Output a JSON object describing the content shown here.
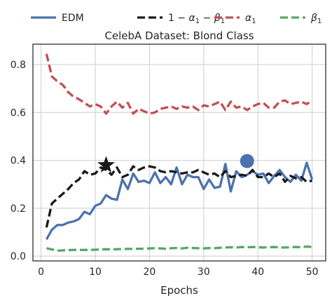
{
  "chart_data": {
    "type": "line",
    "title": "CelebA Dataset: Blond Class",
    "xlabel": "Epochs",
    "ylabel": "",
    "xlim": [
      -1.5,
      52.5
    ],
    "ylim": [
      -0.02,
      0.885
    ],
    "xticks": [
      0,
      10,
      20,
      30,
      40,
      50
    ],
    "xtick_labels": [
      "0",
      "10",
      "20",
      "30",
      "40",
      "50"
    ],
    "yticks": [
      0.0,
      0.2,
      0.4,
      0.6,
      0.8
    ],
    "ytick_labels": [
      "0.0",
      "0.2",
      "0.4",
      "0.6",
      "0.8"
    ],
    "grid": true,
    "legend_position": "top, outside plot",
    "series": [
      {
        "name": "EDM",
        "style": "solid",
        "color": "#4c72b0",
        "x": [
          1,
          2,
          3,
          4,
          5,
          6,
          7,
          8,
          9,
          10,
          11,
          12,
          13,
          14,
          15,
          16,
          17,
          18,
          19,
          20,
          21,
          22,
          23,
          24,
          25,
          26,
          27,
          28,
          29,
          30,
          31,
          32,
          33,
          34,
          35,
          36,
          37,
          38,
          39,
          40,
          41,
          42,
          43,
          44,
          45,
          46,
          47,
          48,
          49,
          50
        ],
        "values": [
          0.07,
          0.11,
          0.13,
          0.13,
          0.14,
          0.145,
          0.155,
          0.185,
          0.175,
          0.21,
          0.22,
          0.255,
          0.24,
          0.235,
          0.32,
          0.28,
          0.345,
          0.31,
          0.315,
          0.305,
          0.35,
          0.305,
          0.33,
          0.3,
          0.37,
          0.3,
          0.34,
          0.33,
          0.33,
          0.28,
          0.32,
          0.285,
          0.29,
          0.385,
          0.27,
          0.355,
          0.33,
          0.34,
          0.355,
          0.34,
          0.345,
          0.305,
          0.335,
          0.36,
          0.33,
          0.31,
          0.34,
          0.315,
          0.39,
          0.32
        ]
      },
      {
        "name": "$1-\\alpha_1-\\beta_1$",
        "style": "dashed",
        "color": "#1a1a1a",
        "x": [
          1,
          2,
          3,
          4,
          5,
          6,
          7,
          8,
          9,
          10,
          11,
          12,
          13,
          14,
          15,
          16,
          17,
          18,
          19,
          20,
          21,
          22,
          23,
          24,
          25,
          26,
          27,
          28,
          29,
          30,
          31,
          32,
          33,
          34,
          35,
          36,
          37,
          38,
          39,
          40,
          41,
          42,
          43,
          44,
          45,
          46,
          47,
          48,
          49,
          50
        ],
        "values": [
          0.12,
          0.22,
          0.24,
          0.26,
          0.28,
          0.305,
          0.32,
          0.355,
          0.34,
          0.345,
          0.37,
          0.36,
          0.34,
          0.37,
          0.33,
          0.34,
          0.375,
          0.36,
          0.37,
          0.375,
          0.37,
          0.355,
          0.35,
          0.355,
          0.35,
          0.345,
          0.35,
          0.35,
          0.36,
          0.35,
          0.34,
          0.345,
          0.33,
          0.355,
          0.33,
          0.335,
          0.34,
          0.335,
          0.36,
          0.33,
          0.33,
          0.345,
          0.33,
          0.345,
          0.31,
          0.335,
          0.325,
          0.33,
          0.31,
          0.315
        ]
      },
      {
        "name": "$\\alpha_1$",
        "style": "dashed",
        "color": "#c44e52",
        "x": [
          1,
          2,
          3,
          4,
          5,
          6,
          7,
          8,
          9,
          10,
          11,
          12,
          13,
          14,
          15,
          16,
          17,
          18,
          19,
          20,
          21,
          22,
          23,
          24,
          25,
          26,
          27,
          28,
          29,
          30,
          31,
          32,
          33,
          34,
          35,
          36,
          37,
          38,
          39,
          40,
          41,
          42,
          43,
          44,
          45,
          46,
          47,
          48,
          49,
          50
        ],
        "values": [
          0.845,
          0.75,
          0.73,
          0.715,
          0.685,
          0.665,
          0.655,
          0.64,
          0.625,
          0.635,
          0.625,
          0.595,
          0.625,
          0.645,
          0.62,
          0.64,
          0.595,
          0.615,
          0.605,
          0.595,
          0.6,
          0.615,
          0.62,
          0.625,
          0.615,
          0.625,
          0.62,
          0.625,
          0.61,
          0.63,
          0.625,
          0.635,
          0.645,
          0.61,
          0.645,
          0.62,
          0.625,
          0.61,
          0.625,
          0.635,
          0.64,
          0.62,
          0.62,
          0.645,
          0.65,
          0.635,
          0.64,
          0.645,
          0.635,
          0.65
        ]
      },
      {
        "name": "$\\beta_1$",
        "style": "dashed",
        "color": "#55a868",
        "x": [
          1,
          2,
          3,
          4,
          5,
          6,
          7,
          8,
          9,
          10,
          11,
          12,
          13,
          14,
          15,
          16,
          17,
          18,
          19,
          20,
          21,
          22,
          23,
          24,
          25,
          26,
          27,
          28,
          29,
          30,
          31,
          32,
          33,
          34,
          35,
          36,
          37,
          38,
          39,
          40,
          41,
          42,
          43,
          44,
          45,
          46,
          47,
          48,
          49,
          50
        ],
        "values": [
          0.033,
          0.028,
          0.023,
          0.024,
          0.025,
          0.026,
          0.026,
          0.026,
          0.026,
          0.027,
          0.028,
          0.029,
          0.028,
          0.029,
          0.03,
          0.03,
          0.03,
          0.031,
          0.031,
          0.032,
          0.033,
          0.032,
          0.031,
          0.033,
          0.034,
          0.032,
          0.035,
          0.034,
          0.033,
          0.032,
          0.034,
          0.033,
          0.035,
          0.036,
          0.037,
          0.036,
          0.038,
          0.037,
          0.038,
          0.037,
          0.036,
          0.037,
          0.038,
          0.036,
          0.036,
          0.037,
          0.038,
          0.037,
          0.04,
          0.038
        ]
      }
    ],
    "markers": [
      {
        "shape": "star",
        "x": 12,
        "y": 0.38,
        "color": "#1a1a1a"
      },
      {
        "shape": "circle",
        "x": 38,
        "y": 0.397,
        "color": "#4c72b0"
      }
    ]
  }
}
